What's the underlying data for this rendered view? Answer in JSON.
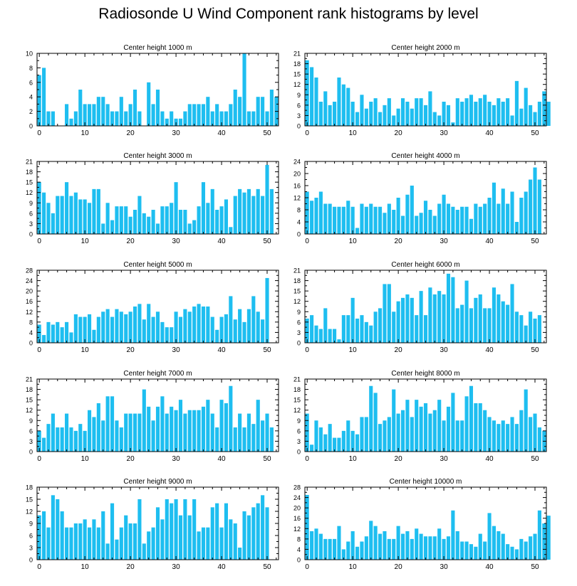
{
  "figure": {
    "title": "Radiosonde U Wind Component rank histograms by level",
    "bar_color": "#1EBEF0"
  },
  "chart_data": [
    {
      "type": "bar",
      "title": "Center height 1000 m",
      "xlabel": "",
      "ylabel": "",
      "xlim": [
        -0.5,
        52.5
      ],
      "ylim": [
        0,
        10
      ],
      "xticks": [
        0,
        10,
        20,
        30,
        40,
        50
      ],
      "yticks": [
        0,
        2,
        4,
        6,
        8,
        10
      ],
      "values": [
        7,
        8,
        2,
        2,
        0,
        0,
        3,
        1,
        2,
        5,
        3,
        3,
        3,
        4,
        4,
        3,
        2,
        2,
        4,
        2,
        3,
        5,
        2,
        0,
        6,
        3,
        5,
        2,
        1,
        2,
        1,
        1,
        2,
        3,
        3,
        3,
        3,
        4,
        2,
        3,
        2,
        2,
        3,
        5,
        4,
        10,
        2,
        2,
        4,
        4,
        2,
        5,
        4
      ]
    },
    {
      "type": "bar",
      "title": "Center height 2000 m",
      "xlabel": "",
      "ylabel": "",
      "xlim": [
        -0.5,
        52.5
      ],
      "ylim": [
        0,
        21
      ],
      "xticks": [
        0,
        10,
        20,
        30,
        40,
        50
      ],
      "yticks": [
        0,
        3,
        6,
        9,
        12,
        15,
        18,
        21
      ],
      "values": [
        19,
        17,
        14,
        7,
        10,
        6,
        7,
        14,
        12,
        11,
        7,
        4,
        9,
        5,
        7,
        8,
        4,
        6,
        8,
        3,
        5,
        8,
        7,
        5,
        8,
        8,
        6,
        10,
        4,
        3,
        7,
        6,
        1,
        8,
        7,
        8,
        9,
        7,
        8,
        9,
        7,
        6,
        8,
        7,
        8,
        3,
        13,
        5,
        11,
        6,
        4,
        7,
        10,
        7
      ]
    },
    {
      "type": "bar",
      "title": "Center height 3000 m",
      "xlabel": "",
      "ylabel": "",
      "xlim": [
        -0.5,
        52.5
      ],
      "ylim": [
        0,
        21
      ],
      "xticks": [
        0,
        10,
        20,
        30,
        40,
        50
      ],
      "yticks": [
        0,
        3,
        6,
        9,
        12,
        15,
        18,
        21
      ],
      "values": [
        15,
        12,
        9,
        6,
        11,
        11,
        15,
        11,
        12,
        10,
        10,
        9,
        13,
        13,
        3,
        9,
        4,
        8,
        8,
        8,
        5,
        7,
        11,
        6,
        5,
        7,
        3,
        8,
        8,
        9,
        15,
        7,
        7,
        3,
        4,
        8,
        15,
        9,
        13,
        7,
        8,
        10,
        2,
        11,
        13,
        12,
        13,
        11,
        13,
        11,
        20,
        13
      ]
    },
    {
      "type": "bar",
      "title": "Center height 4000 m",
      "xlabel": "",
      "ylabel": "",
      "xlim": [
        -0.5,
        52.5
      ],
      "ylim": [
        0,
        24
      ],
      "xticks": [
        0,
        10,
        20,
        30,
        40,
        50
      ],
      "yticks": [
        0,
        4,
        8,
        12,
        16,
        20,
        24
      ],
      "values": [
        14,
        11,
        12,
        14,
        10,
        10,
        9,
        9,
        9,
        11,
        9,
        2,
        10,
        9,
        10,
        9,
        9,
        7,
        10,
        8,
        12,
        6,
        13,
        16,
        6,
        7,
        11,
        8,
        6,
        10,
        13,
        10,
        9,
        8,
        9,
        9,
        5,
        10,
        9,
        10,
        12,
        17,
        10,
        15,
        10,
        14,
        4,
        12,
        14,
        18,
        22,
        18
      ]
    },
    {
      "type": "bar",
      "title": "Center height 5000 m",
      "xlabel": "",
      "ylabel": "",
      "xlim": [
        -0.5,
        52.5
      ],
      "ylim": [
        0,
        28
      ],
      "xticks": [
        0,
        10,
        20,
        30,
        40,
        50
      ],
      "yticks": [
        0,
        4,
        8,
        12,
        16,
        20,
        24,
        28
      ],
      "values": [
        7,
        3,
        8,
        7,
        8,
        6,
        8,
        4,
        11,
        10,
        10,
        11,
        5,
        10,
        12,
        13,
        10,
        13,
        12,
        11,
        12,
        14,
        15,
        9,
        15,
        10,
        12,
        8,
        6,
        6,
        12,
        10,
        13,
        12,
        14,
        15,
        14,
        14,
        10,
        5,
        10,
        11,
        18,
        9,
        13,
        8,
        13,
        18,
        12,
        9,
        25
      ]
    },
    {
      "type": "bar",
      "title": "Center height 6000 m",
      "xlabel": "",
      "ylabel": "",
      "xlim": [
        -0.5,
        52.5
      ],
      "ylim": [
        0,
        21
      ],
      "xticks": [
        0,
        10,
        20,
        30,
        40,
        50
      ],
      "yticks": [
        0,
        3,
        6,
        9,
        12,
        15,
        18,
        21
      ],
      "values": [
        7,
        8,
        5,
        4,
        10,
        4,
        4,
        1,
        8,
        8,
        13,
        7,
        8,
        6,
        5,
        9,
        10,
        17,
        17,
        9,
        12,
        13,
        14,
        13,
        8,
        15,
        8,
        16,
        14,
        15,
        14,
        20,
        19,
        10,
        11,
        18,
        10,
        13,
        14,
        10,
        10,
        16,
        14,
        12,
        11,
        17,
        9,
        8,
        5,
        9,
        7,
        8
      ]
    },
    {
      "type": "bar",
      "title": "Center height 7000 m",
      "xlabel": "",
      "ylabel": "",
      "xlim": [
        -0.5,
        52.5
      ],
      "ylim": [
        0,
        21
      ],
      "xticks": [
        0,
        10,
        20,
        30,
        40,
        50
      ],
      "yticks": [
        0,
        3,
        6,
        9,
        12,
        15,
        18,
        21
      ],
      "values": [
        6,
        4,
        8,
        11,
        7,
        7,
        11,
        7,
        6,
        8,
        6,
        12,
        10,
        14,
        9,
        16,
        16,
        9,
        7,
        11,
        11,
        11,
        11,
        18,
        13,
        9,
        13,
        16,
        11,
        13,
        12,
        15,
        11,
        12,
        12,
        12,
        13,
        15,
        11,
        7,
        15,
        14,
        19,
        7,
        11,
        7,
        11,
        8,
        15,
        9,
        11,
        7
      ]
    },
    {
      "type": "bar",
      "title": "Center height 8000 m",
      "xlabel": "",
      "ylabel": "",
      "xlim": [
        -0.5,
        52.5
      ],
      "ylim": [
        0,
        21
      ],
      "xticks": [
        0,
        10,
        20,
        30,
        40,
        50
      ],
      "yticks": [
        0,
        3,
        6,
        9,
        12,
        15,
        18,
        21
      ],
      "values": [
        11,
        2,
        9,
        7,
        5,
        8,
        4,
        4,
        6,
        9,
        6,
        5,
        10,
        10,
        19,
        17,
        8,
        9,
        10,
        18,
        11,
        12,
        15,
        10,
        15,
        13,
        14,
        11,
        12,
        15,
        9,
        13,
        17,
        9,
        9,
        16,
        19,
        14,
        14,
        12,
        10,
        9,
        8,
        9,
        8,
        10,
        8,
        12,
        18,
        10,
        11,
        7,
        6
      ]
    },
    {
      "type": "bar",
      "title": "Center height 9000 m",
      "xlabel": "",
      "ylabel": "",
      "xlim": [
        -0.5,
        52.5
      ],
      "ylim": [
        0,
        18
      ],
      "xticks": [
        0,
        10,
        20,
        30,
        40,
        50
      ],
      "yticks": [
        0,
        3,
        6,
        9,
        12,
        15,
        18
      ],
      "values": [
        11,
        12,
        8,
        16,
        15,
        12,
        8,
        8,
        9,
        9,
        10,
        8,
        10,
        8,
        12,
        4,
        14,
        5,
        8,
        11,
        9,
        9,
        15,
        4,
        7,
        8,
        13,
        10,
        15,
        14,
        15,
        11,
        15,
        11,
        15,
        7,
        8,
        8,
        13,
        14,
        8,
        14,
        10,
        9,
        3,
        12,
        11,
        13,
        14,
        16,
        13
      ]
    },
    {
      "type": "bar",
      "title": "Center height 10000 m",
      "xlabel": "",
      "ylabel": "",
      "xlim": [
        -0.5,
        52.5
      ],
      "ylim": [
        0,
        28
      ],
      "xticks": [
        0,
        10,
        20,
        30,
        40,
        50
      ],
      "yticks": [
        0,
        4,
        8,
        12,
        16,
        20,
        24,
        28
      ],
      "values": [
        25,
        11,
        12,
        10,
        8,
        8,
        8,
        13,
        4,
        7,
        11,
        5,
        7,
        9,
        15,
        13,
        10,
        11,
        8,
        8,
        13,
        10,
        11,
        8,
        12,
        10,
        9,
        9,
        9,
        12,
        8,
        9,
        19,
        11,
        7,
        7,
        6,
        5,
        10,
        7,
        18,
        13,
        11,
        10,
        6,
        5,
        4,
        8,
        7,
        9,
        10,
        19,
        14,
        17
      ]
    }
  ]
}
